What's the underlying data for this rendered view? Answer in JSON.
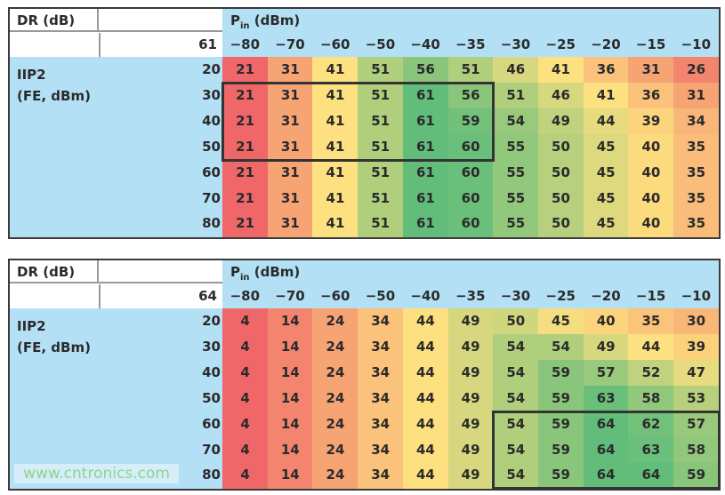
{
  "chart_data": [
    {
      "type": "heatmap",
      "corner_label": "DR (dB)",
      "dr_value": "61",
      "row_label": "IIP2 (FE, dBm)",
      "row_label_lines": [
        "IIP2",
        "(FE, dBm)"
      ],
      "column_label": "P",
      "column_label_sub": "in",
      "column_label_unit": " (dBm)",
      "columns": [
        "−80",
        "−70",
        "−60",
        "−50",
        "−40",
        "−35",
        "−30",
        "−25",
        "−20",
        "−15",
        "−10"
      ],
      "rows": [
        "20",
        "30",
        "40",
        "50",
        "60",
        "70",
        "80"
      ],
      "values": [
        [
          21,
          31,
          41,
          51,
          56,
          51,
          46,
          41,
          36,
          31,
          26
        ],
        [
          21,
          31,
          41,
          51,
          61,
          56,
          51,
          46,
          41,
          36,
          31
        ],
        [
          21,
          31,
          41,
          51,
          61,
          59,
          54,
          49,
          44,
          39,
          34
        ],
        [
          21,
          31,
          41,
          51,
          61,
          60,
          55,
          50,
          45,
          40,
          35
        ],
        [
          21,
          31,
          41,
          51,
          61,
          60,
          55,
          50,
          45,
          40,
          35
        ],
        [
          21,
          31,
          41,
          51,
          61,
          60,
          55,
          50,
          45,
          40,
          35
        ],
        [
          21,
          31,
          41,
          51,
          61,
          60,
          55,
          50,
          45,
          40,
          35
        ]
      ],
      "highlight": {
        "rows": [
          "30",
          "50"
        ],
        "columns": [
          "−80",
          "−35"
        ]
      },
      "color_scale": {
        "low": "#f0676a",
        "mid": "#fde07f",
        "high": "#62bd7b"
      }
    },
    {
      "type": "heatmap",
      "corner_label": "DR (dB)",
      "dr_value": "64",
      "row_label": "IIP2 (FE, dBm)",
      "row_label_lines": [
        "IIP2",
        "(FE, dBm)"
      ],
      "column_label": "P",
      "column_label_sub": "in",
      "column_label_unit": " (dBm)",
      "columns": [
        "−80",
        "−70",
        "−60",
        "−50",
        "−40",
        "−35",
        "−30",
        "−25",
        "−20",
        "−15",
        "−10"
      ],
      "rows": [
        "20",
        "30",
        "40",
        "50",
        "60",
        "70",
        "80"
      ],
      "values": [
        [
          4,
          14,
          24,
          34,
          44,
          49,
          50,
          45,
          40,
          35,
          30
        ],
        [
          4,
          14,
          24,
          34,
          44,
          49,
          54,
          54,
          49,
          44,
          39
        ],
        [
          4,
          14,
          24,
          34,
          44,
          49,
          54,
          59,
          57,
          52,
          47
        ],
        [
          4,
          14,
          24,
          34,
          44,
          49,
          54,
          59,
          63,
          58,
          53
        ],
        [
          4,
          14,
          24,
          34,
          44,
          49,
          54,
          59,
          64,
          62,
          57
        ],
        [
          4,
          14,
          24,
          34,
          44,
          49,
          54,
          59,
          64,
          63,
          58
        ],
        [
          4,
          14,
          24,
          34,
          44,
          49,
          54,
          59,
          64,
          64,
          59
        ]
      ],
      "highlight": {
        "rows": [
          "60",
          "80"
        ],
        "columns": [
          "−30",
          "−10"
        ]
      },
      "color_scale": {
        "low": "#f0676a",
        "mid": "#fde07f",
        "high": "#62bd7b"
      }
    }
  ],
  "watermark": "www.cntronics.com"
}
